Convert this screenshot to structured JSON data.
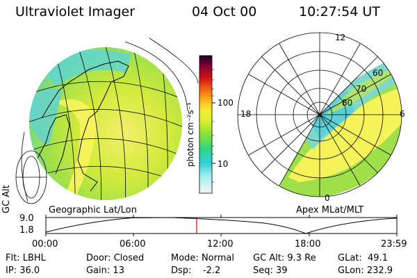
{
  "header": {
    "title": "Ultraviolet Imager",
    "date": "04 Oct 00",
    "time": "10:27:54 UT"
  },
  "colorbar": {
    "unit_label": "photon cm⁻²s⁻¹",
    "ticks": [
      "100",
      "10"
    ]
  },
  "left_panel": {
    "label": "Geographic Lat/Lon"
  },
  "right_panel": {
    "label": "Apex  MLat/MLT",
    "mlt_labels": [
      "12",
      "18",
      "6",
      "0"
    ],
    "mlat_labels": [
      "60",
      "70",
      "80"
    ]
  },
  "altitude_plot": {
    "axis_label": "GC Alt",
    "y_ticks": [
      "9.0",
      "1.8"
    ],
    "x_ticks": [
      "00:00",
      "06:00",
      "12:00",
      "18:00",
      "23:59"
    ]
  },
  "status": {
    "row1": [
      {
        "label": "Flt:",
        "value": "LBHL"
      },
      {
        "label": "Door:",
        "value": "Closed"
      },
      {
        "label": "Mode:",
        "value": "Normal"
      },
      {
        "label": "GC Alt:",
        "value": "9.3 Re"
      },
      {
        "label": "GLat:",
        "value": "49.1"
      }
    ],
    "row2": [
      {
        "label": "IP:",
        "value": "36.0"
      },
      {
        "label": "Gain:",
        "value": "13"
      },
      {
        "label": "Dsp:",
        "value": "-2.2"
      },
      {
        "label": "Seq:",
        "value": "39"
      },
      {
        "label": "GLon:",
        "value": "232.9"
      }
    ]
  },
  "colors": {
    "aurora_low": "#29d1c6",
    "aurora_mid": "#c8e63a",
    "aurora_high": "#f7f250",
    "marker": "#e00000"
  }
}
